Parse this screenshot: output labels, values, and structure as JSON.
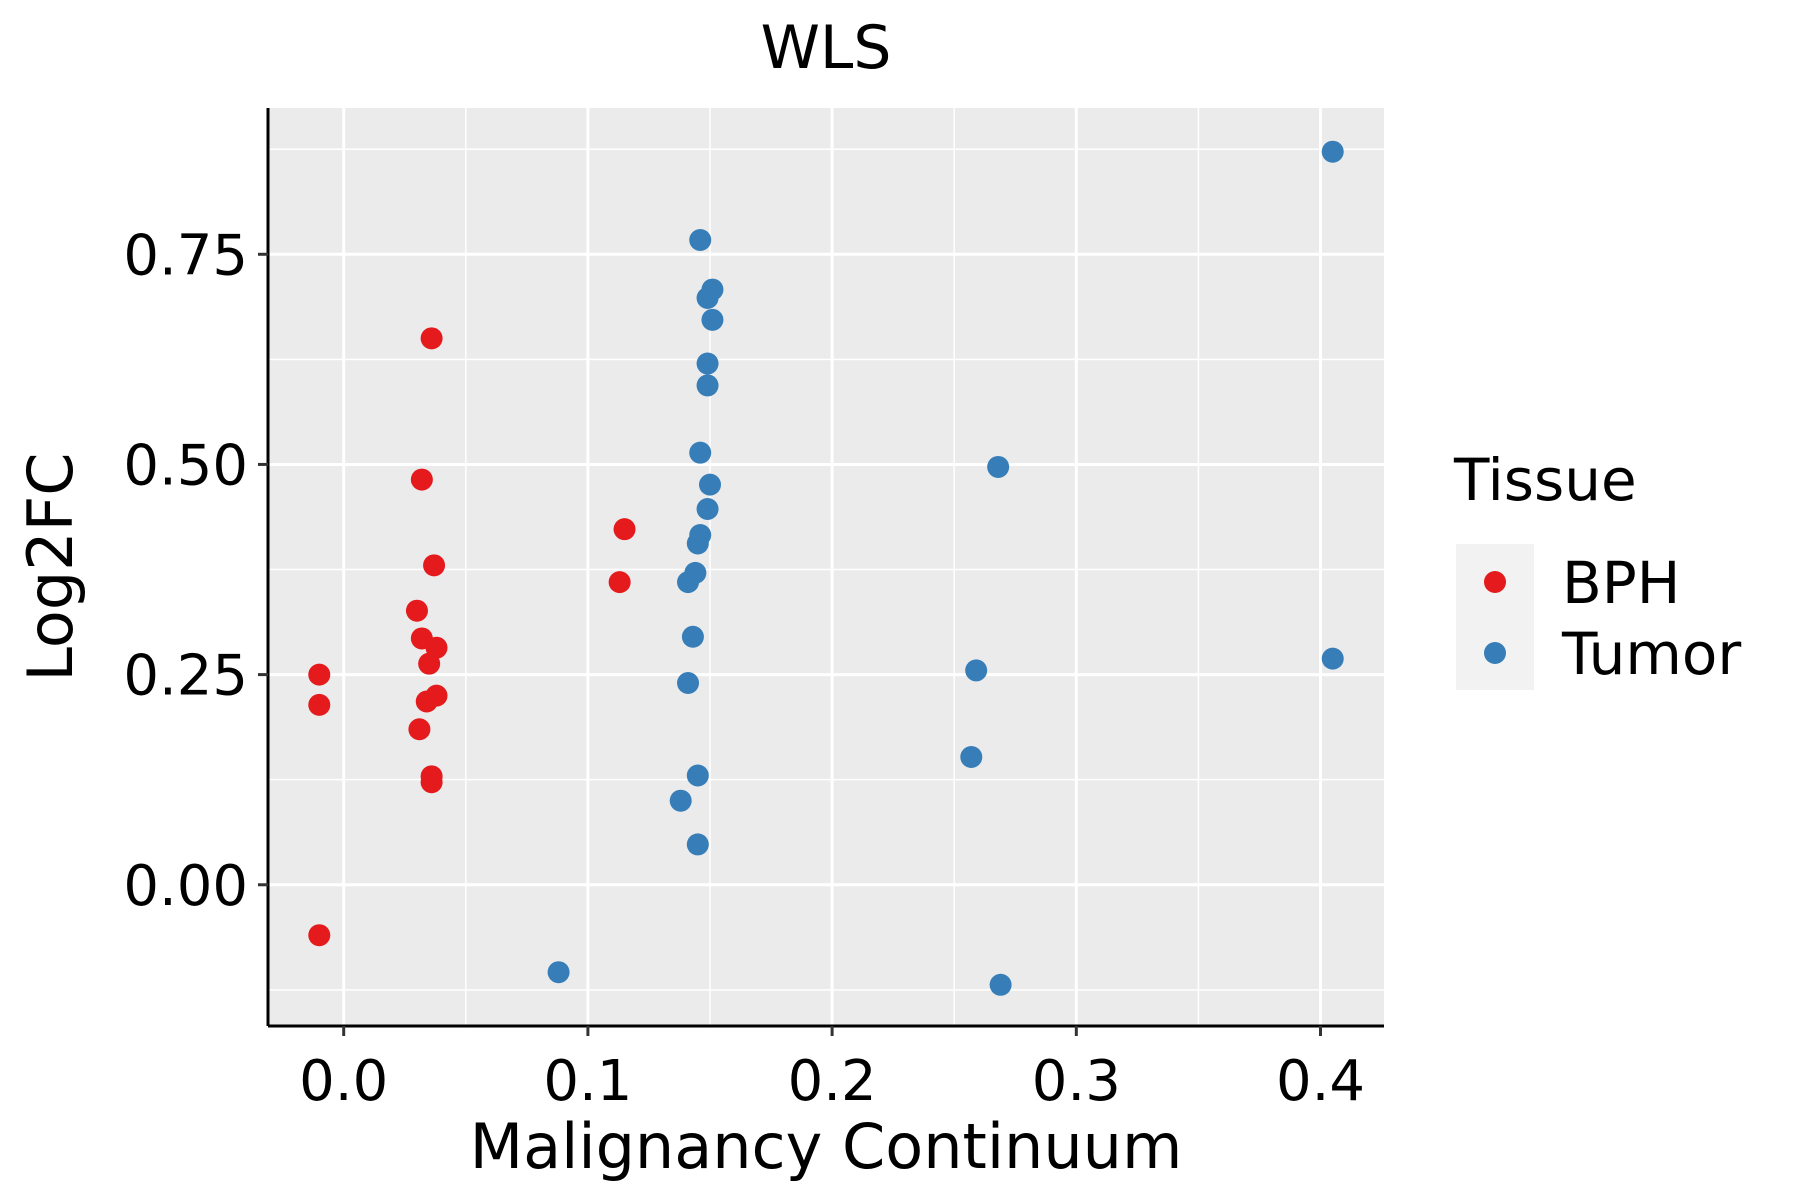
{
  "chart_data": {
    "type": "scatter",
    "title": "WLS",
    "xlabel": "Malignancy Continuum",
    "ylabel": "Log2FC",
    "xlim": [
      -0.031,
      0.426
    ],
    "ylim": [
      -0.168,
      0.924
    ],
    "x_ticks": [
      0.0,
      0.1,
      0.2,
      0.3,
      0.4
    ],
    "x_tick_labels": [
      "0.0",
      "0.1",
      "0.2",
      "0.3",
      "0.4"
    ],
    "y_ticks": [
      0.0,
      0.25,
      0.5,
      0.75
    ],
    "y_tick_labels": [
      "0.00",
      "0.25",
      "0.50",
      "0.75"
    ],
    "grid": true,
    "legend": {
      "title": "Tissue",
      "position": "right"
    },
    "series": [
      {
        "name": "BPH",
        "color": "#e41a1c",
        "points": [
          {
            "x": -0.01,
            "y": 0.25
          },
          {
            "x": -0.01,
            "y": 0.214
          },
          {
            "x": -0.01,
            "y": -0.06
          },
          {
            "x": 0.036,
            "y": 0.65
          },
          {
            "x": 0.032,
            "y": 0.482
          },
          {
            "x": 0.037,
            "y": 0.38
          },
          {
            "x": 0.03,
            "y": 0.326
          },
          {
            "x": 0.032,
            "y": 0.293
          },
          {
            "x": 0.038,
            "y": 0.282
          },
          {
            "x": 0.035,
            "y": 0.263
          },
          {
            "x": 0.038,
            "y": 0.225
          },
          {
            "x": 0.034,
            "y": 0.218
          },
          {
            "x": 0.031,
            "y": 0.185
          },
          {
            "x": 0.036,
            "y": 0.129
          },
          {
            "x": 0.036,
            "y": 0.122
          },
          {
            "x": 0.115,
            "y": 0.423
          },
          {
            "x": 0.113,
            "y": 0.36
          }
        ]
      },
      {
        "name": "Tumor",
        "color": "#377eb8",
        "points": [
          {
            "x": 0.146,
            "y": 0.767
          },
          {
            "x": 0.151,
            "y": 0.708
          },
          {
            "x": 0.149,
            "y": 0.698
          },
          {
            "x": 0.151,
            "y": 0.672
          },
          {
            "x": 0.149,
            "y": 0.62
          },
          {
            "x": 0.149,
            "y": 0.594
          },
          {
            "x": 0.146,
            "y": 0.514
          },
          {
            "x": 0.15,
            "y": 0.476
          },
          {
            "x": 0.149,
            "y": 0.447
          },
          {
            "x": 0.146,
            "y": 0.416
          },
          {
            "x": 0.145,
            "y": 0.406
          },
          {
            "x": 0.144,
            "y": 0.371
          },
          {
            "x": 0.141,
            "y": 0.36
          },
          {
            "x": 0.143,
            "y": 0.295
          },
          {
            "x": 0.141,
            "y": 0.24
          },
          {
            "x": 0.145,
            "y": 0.13
          },
          {
            "x": 0.138,
            "y": 0.1
          },
          {
            "x": 0.145,
            "y": 0.048
          },
          {
            "x": 0.088,
            "y": -0.104
          },
          {
            "x": 0.268,
            "y": 0.497
          },
          {
            "x": 0.259,
            "y": 0.255
          },
          {
            "x": 0.257,
            "y": 0.152
          },
          {
            "x": 0.269,
            "y": -0.119
          },
          {
            "x": 0.405,
            "y": 0.872
          },
          {
            "x": 0.405,
            "y": 0.269
          }
        ]
      }
    ]
  }
}
